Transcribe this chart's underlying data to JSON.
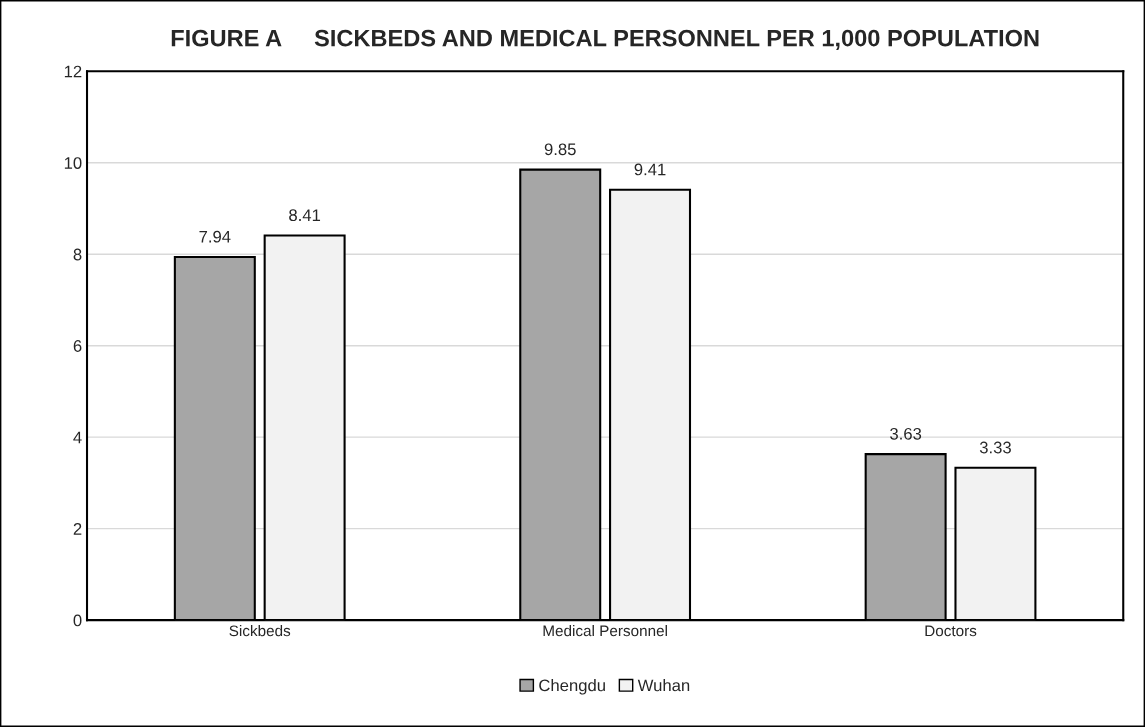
{
  "chart_data": {
    "type": "bar",
    "title": "FIGURE A     SICKBEDS AND MEDICAL PERSONNEL PER 1,000 POPULATION",
    "categories": [
      "Sickbeds",
      "Medical Personnel",
      "Doctors"
    ],
    "series": [
      {
        "name": "Chengdu",
        "color": "#a6a6a6",
        "values": [
          7.94,
          9.85,
          3.63
        ]
      },
      {
        "name": "Wuhan",
        "color": "#f2f2f2",
        "values": [
          8.41,
          9.41,
          3.33
        ]
      }
    ],
    "ylim": [
      0,
      12
    ],
    "yticks": [
      0,
      2,
      4,
      6,
      8,
      10,
      12
    ],
    "grid": "y",
    "legend": "bottom",
    "data_labels": true
  }
}
